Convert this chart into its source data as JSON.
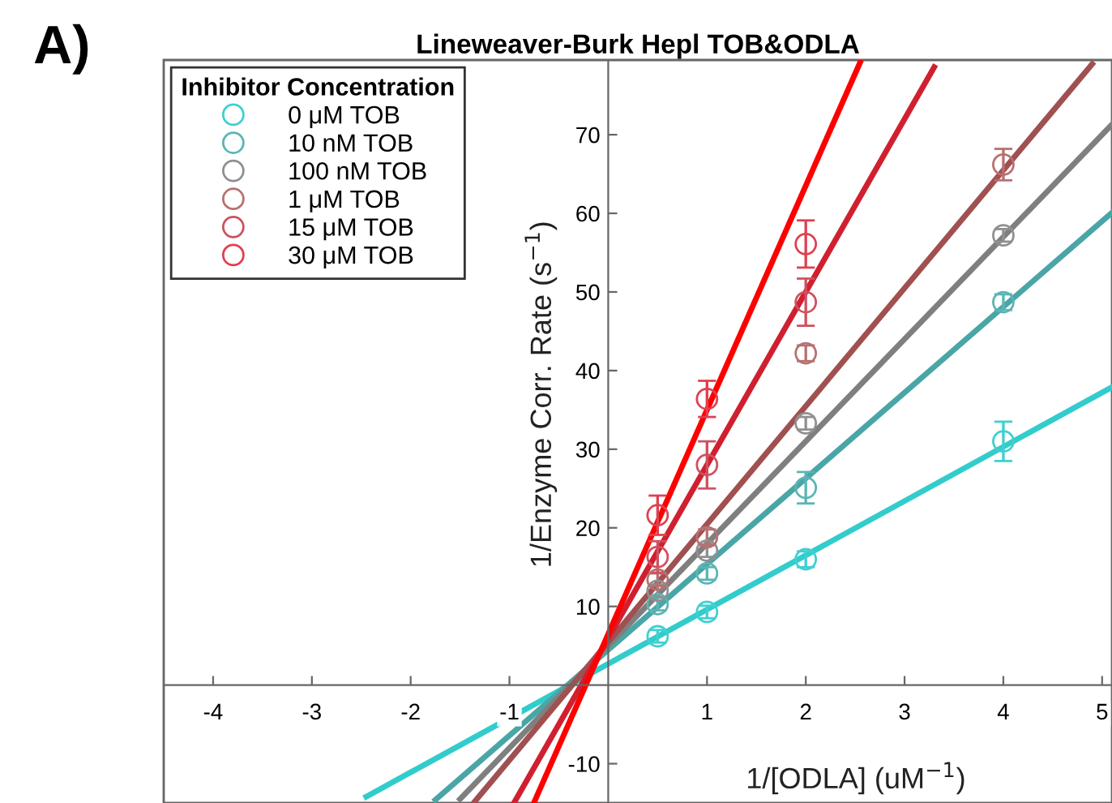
{
  "chart_data": {
    "type": "scatter",
    "title": "Lineweaver-Burk Hepl TOB&ODLA",
    "xlabel": "1/[ODLA] (uM$^{−1}$)",
    "ylabel": "1/Enzyme Corr. Rate (s$^{−1}$)",
    "legend_title": "Inhibitor Concentration",
    "legend": "top left",
    "grid": false,
    "annotations": [
      "A)"
    ],
    "xlim": [
      -4.5,
      5.1
    ],
    "ylim": [
      -15,
      79.5
    ],
    "xticks": [
      -4,
      -3,
      -2,
      -1,
      1,
      2,
      3,
      4,
      5
    ],
    "yticks": [
      -10,
      10,
      20,
      30,
      40,
      50,
      60,
      70
    ],
    "series": [
      {
        "name": "0 μM TOB",
        "marker": "circle",
        "color": "#3fd0d0",
        "x": [
          0.5,
          1,
          2,
          4
        ],
        "values": [
          6.2,
          9.3,
          16,
          31
        ],
        "errors": [
          0.8,
          0.8,
          1,
          2.5
        ]
      },
      {
        "name": "10 nM TOB",
        "marker": "circle",
        "color": "#5bb5b5",
        "x": [
          0.5,
          1,
          2,
          4
        ],
        "values": [
          10.3,
          14.2,
          25.1,
          48.7
        ],
        "errors": [
          0.8,
          0.8,
          2,
          1
        ]
      },
      {
        "name": "100 nM TOB",
        "marker": "circle",
        "color": "#909090",
        "x": [
          0.5,
          1,
          2,
          4
        ],
        "values": [
          12,
          17.1,
          33.3,
          57.2
        ],
        "errors": [
          0.8,
          0.8,
          0.8,
          0.8
        ]
      },
      {
        "name": "1 μM TOB",
        "marker": "circle",
        "color": "#b87070",
        "x": [
          0.5,
          1,
          2,
          4
        ],
        "values": [
          13.4,
          18.8,
          42.2,
          66.2
        ],
        "errors": [
          0.8,
          1,
          1,
          2
        ]
      },
      {
        "name": "15 μM TOB",
        "marker": "circle",
        "color": "#d05060",
        "x": [
          0.5,
          1,
          2
        ],
        "values": [
          16.3,
          28,
          48.7
        ],
        "errors": [
          2,
          3,
          3
        ]
      },
      {
        "name": "30 μM TOB",
        "marker": "circle",
        "color": "#e04050",
        "x": [
          0.5,
          1,
          2
        ],
        "values": [
          21.6,
          36.4,
          56.1
        ],
        "errors": [
          2.5,
          2.3,
          3
        ]
      },
      {
        "type": "line",
        "color": "#33cccc",
        "x": [
          -2.45,
          5.1
        ],
        "values": [
          -14.2,
          37.9
        ]
      },
      {
        "type": "line",
        "color": "#4aa6a6",
        "x": [
          -1.75,
          5.1
        ],
        "values": [
          -14.6,
          60.1
        ]
      },
      {
        "type": "line",
        "color": "#7f7f7f",
        "x": [
          -1.5,
          5.1
        ],
        "values": [
          -14.5,
          71.3
        ]
      },
      {
        "type": "line",
        "color": "#a05050",
        "x": [
          -1.35,
          4.9
        ],
        "values": [
          -14.8,
          79
        ]
      },
      {
        "type": "line",
        "color": "#d02030",
        "x": [
          -0.95,
          3.3
        ],
        "values": [
          -14.9,
          78.6
        ]
      },
      {
        "type": "line",
        "color": "#ff0000",
        "x": [
          -0.75,
          2.55
        ],
        "values": [
          -14.9,
          79.2
        ]
      }
    ]
  }
}
